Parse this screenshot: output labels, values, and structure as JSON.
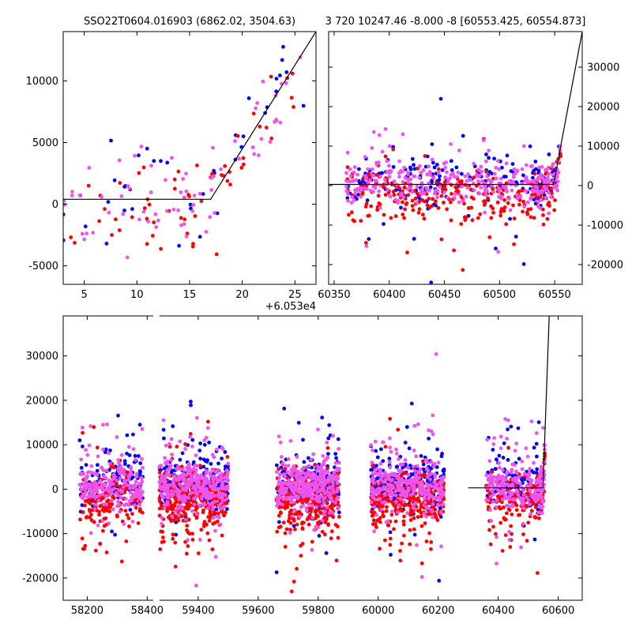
{
  "colors": {
    "blue": "#0000ff",
    "red": "#ff0000",
    "magenta": "#ee55ee",
    "model": "#000000"
  },
  "chart_data": [
    {
      "id": "top-left",
      "type": "scatter",
      "title": "SSO22T0604.016903 (6862.02, 3504.63)",
      "xlim": [
        3,
        27
      ],
      "ylim": [
        -6500,
        14000
      ],
      "xticks": [
        5,
        10,
        15,
        20,
        25
      ],
      "yticks": [
        -5000,
        0,
        5000,
        10000
      ],
      "x_offset_label": "+6.053e4",
      "model_line": [
        [
          3,
          400
        ],
        [
          17,
          400
        ],
        [
          27,
          14000
        ]
      ]
    },
    {
      "id": "top-right",
      "type": "scatter",
      "title": "3 720 10247.46 -8.000 -8 [60553.425, 60554.873]",
      "xlim": [
        60345,
        60575
      ],
      "ylim": [
        -25000,
        39000
      ],
      "xticks": [
        60350,
        60400,
        60450,
        60500,
        60550
      ],
      "yticks": [
        -20000,
        -10000,
        0,
        10000,
        20000,
        30000
      ],
      "y_axis_side": "right",
      "model_line": [
        [
          60345,
          300
        ],
        [
          60549,
          300
        ],
        [
          60575,
          39000
        ]
      ]
    },
    {
      "id": "bottom",
      "type": "scatter",
      "xlim": [
        58120,
        60680
      ],
      "ylim": [
        -25000,
        39000
      ],
      "xticks": [
        58200,
        58400,
        59400,
        59600,
        59800,
        60000,
        60200,
        60400,
        60600
      ],
      "yticks": [
        -20000,
        -10000,
        0,
        10000,
        20000,
        30000
      ],
      "axis_break_after": 58420,
      "model_line": [
        [
          60300,
          300
        ],
        [
          60549,
          300
        ],
        [
          60570,
          39000
        ]
      ],
      "seasons": [
        {
          "x": [
            58175,
            58385
          ],
          "n": 500
        },
        {
          "x": [
            59270,
            59500
          ],
          "n": 900
        },
        {
          "x": [
            59660,
            59870
          ],
          "n": 800
        },
        {
          "x": [
            59975,
            60220
          ],
          "n": 800
        },
        {
          "x": [
            60360,
            60553
          ],
          "n": 450
        }
      ]
    }
  ]
}
